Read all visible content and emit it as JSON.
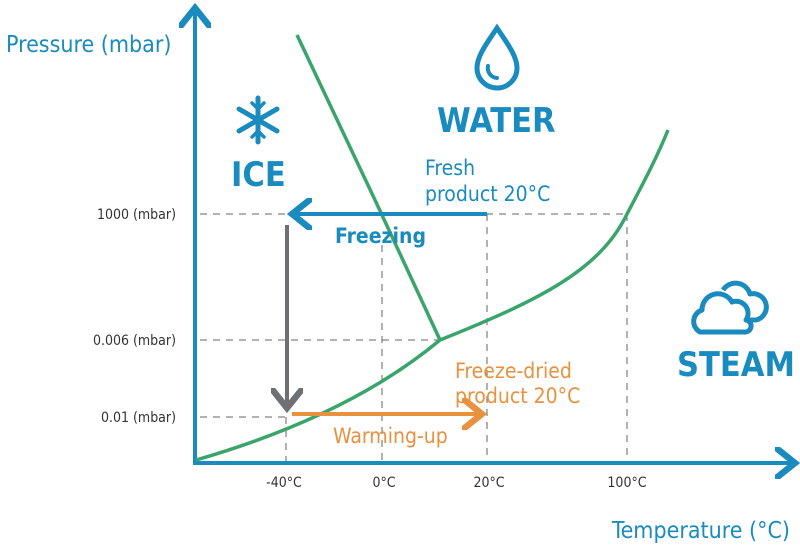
{
  "axes": {
    "y_label": "Pressure (mbar)",
    "x_label": "Temperature (°C)",
    "y_ticks": [
      "1000 (mbar)",
      "0.006 (mbar)",
      "0.01 (mbar)"
    ],
    "x_ticks": [
      "-40°C",
      "0°C",
      "20°C",
      "100°C"
    ]
  },
  "regions": {
    "ice": "ICE",
    "water": "WATER",
    "steam": "STEAM"
  },
  "annotations": {
    "fresh_line1": "Fresh",
    "fresh_line2": "product 20°C",
    "freezing": "Freezing",
    "dried_line1": "Freeze-dried",
    "dried_line2": "product 20°C",
    "warming": "Warming-up"
  },
  "icons": {
    "ice": "snowflake-icon",
    "water": "water-drop-icon",
    "steam": "cloud-icon"
  },
  "colors": {
    "axis": "#1a8bbf",
    "curve": "#3aa56b",
    "freezing": "#1a8bbf",
    "vacuum": "#6d7175",
    "warming": "#e8913f"
  }
}
